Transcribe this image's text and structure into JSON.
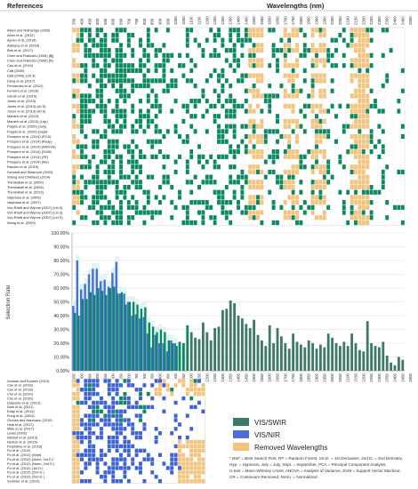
{
  "headers": {
    "references": "References",
    "wavelengths": "Wavelengths (nm)"
  },
  "refs_top": [
    "Allam and Ruthledge (2009)",
    "Alam et al. (2012)",
    "Ayoso et al. (2014)",
    "Awiaszy et al. (2018)",
    "Bah et al. (2017)",
    "Chen and Flatlocks (2006) [Bj]",
    "Chen and Flatlocks (2006) [N]",
    "Cao et al. (2019)",
    "Catt (2000)",
    "Datt (2000) (Lbl 3)",
    "Deng et al. (2017)",
    "Fernandes et al. (2012)",
    "Ferreira et al. (2016)",
    "Ghosh et al. (2019)",
    "Jones et al. (2010)",
    "Jones et al. (2010) (lid S)",
    "Jones et al. (2010) (lid S)",
    "Manlelo et al. (2013)",
    "Manlelo et al. (2013) (Lbp)",
    "Pappis et al. (2020) (July)",
    "Pappis et al. (2020) (Sept)",
    "Prospere et al. (2014) (PCA)",
    "Prospere et al. (2014) (Reap)",
    "Prospere et al. (2014) (ANOVA)",
    "Prospere et al. (2014) (SVM)",
    "Prospere et al. (2014) (SF)",
    "Prospere et al. (2014) (Ma)",
    "Racubo et al. (2019)",
    "Schmidt and Skidmore (2003)",
    "Sheng and Childress (2014)",
    "Thenkabail et al. (2000)",
    "Thenkabail et al. (2004)",
    "Thenkabail et al. (2013)",
    "Vaiphasa et al. (2005)",
    "Vaiphasa et al. (2007)",
    "Von Rheft and Wynne (2007) (Lbl 5)",
    "Von Rheft and Wynne (2007) (Lbl 3)",
    "Von Rheft and Wynne (2007) (Lbl S)",
    "Wang et al. (2009)"
  ],
  "refs_bottom": [
    "Amman and Epstein (2013)",
    "Cao et al. (2016)",
    "Cao et al. (2018)",
    "Cho et al. (2010)",
    "Cho et al. (2016)",
    "Dalponte et al. (2012)",
    "Dian et al. (2011)",
    "Eddy et al. (2014)",
    "Fung et al. (2003)",
    "Grunes and Naumann (2019)",
    "Hsia et al. (2017)",
    "Mkie et al. (2017)",
    "Lewis (2002)",
    "Nixdorf et al. (2013)",
    "Nerlich et al. (2015)",
    "Pearlstine et al. (2018)",
    "Pu et al. (2012)",
    "Pu et al. (2012) (Sept)",
    "Pu et al. (2012) (Norm, 1st D.)",
    "Pu et al. (2012) (Norm, 2nd D.)",
    "Pu et al. (2012) (1st D.)",
    "Pu et al. (2012) (2nd D.)",
    "Pu et al. (2012) (2nd D.)",
    "Sommer et al. (2015)"
  ],
  "bottom_legend": [
    {
      "label": "VIS/SWIR",
      "color": "#3d7a66"
    },
    {
      "label": "VIS/NIR",
      "color": "#4f6fd4"
    },
    {
      "label": "Removed Wavelengths",
      "color": "#f5c47c"
    }
  ],
  "footnote": [
    "* BSF = Best Search First, RF = Random Forest, 1st D. = 1st Derivative, 2nd D. = 2nd Derivativ,",
    "Hyp. = Hyperion, July = July, Sept. = September, PCA = Principal Component Analysis,",
    "U-test = Mann-Whitney U-test, ANOVA = Analysis of Variance, SVM = Support Vector Machine,",
    "CR = Continuum Removed, Norm. = Normalized."
  ],
  "chart_data": {
    "type": "bar",
    "ylabel": "Selection Rate",
    "ylim": [
      0,
      100
    ],
    "yticks": [
      "0.00%",
      "10.00%",
      "20.00%",
      "30.00%",
      "40.00%",
      "50.00%",
      "60.00%",
      "70.00%",
      "80.00%",
      "90.00%",
      "100.00%"
    ],
    "x": [
      350,
      375,
      400,
      425,
      450,
      475,
      500,
      525,
      550,
      575,
      600,
      625,
      650,
      675,
      700,
      725,
      750,
      775,
      800,
      825,
      850,
      875,
      900,
      925,
      950,
      975,
      1000,
      1025,
      1050,
      1075,
      1100,
      1125,
      1150,
      1175,
      1200,
      1225,
      1250,
      1275,
      1300,
      1325,
      1350,
      1375,
      1400,
      1425,
      1450,
      1475,
      1500,
      1525,
      1550,
      1575,
      1600,
      1625,
      1650,
      1675,
      1700,
      1725,
      1750,
      1775,
      1800,
      1825,
      1850,
      1875,
      1900,
      1925,
      1950,
      1975,
      2000,
      2025,
      2050,
      2075,
      2100,
      2125,
      2150,
      2175,
      2200,
      2225,
      2250,
      2275,
      2300,
      2325,
      2350,
      2375,
      2400,
      2425,
      2450
    ],
    "tick_labels": [
      "350",
      "400",
      "450",
      "500",
      "550",
      "600",
      "650",
      "700",
      "750",
      "800",
      "850",
      "900",
      "950",
      "1000",
      "1050",
      "1100",
      "1150",
      "1200",
      "1250",
      "1300",
      "1350",
      "1400",
      "1450",
      "1500",
      "1550",
      "1600",
      "1650",
      "1700",
      "1750",
      "1800",
      "1850",
      "1900",
      "1950",
      "2000",
      "2050",
      "2100",
      "2150",
      "2200",
      "2250",
      "2300",
      "2350",
      "2400",
      "2450",
      "2500"
    ],
    "series": [
      {
        "name": "VIS/SWIR",
        "color": "#0b8a62",
        "values": [
          42,
          40,
          52,
          52,
          57,
          55,
          60,
          58,
          55,
          60,
          61,
          56,
          57,
          48,
          50,
          50,
          48,
          45,
          46,
          35,
          32,
          28,
          30,
          28,
          22,
          20,
          18,
          21,
          20,
          33,
          28,
          24,
          23,
          35,
          28,
          22,
          31,
          32,
          44,
          45,
          51,
          49,
          40,
          38,
          34,
          31,
          37,
          26,
          22,
          18,
          33,
          20,
          31,
          25,
          20,
          16,
          27,
          21,
          19,
          17,
          22,
          20,
          16,
          19,
          17,
          27,
          24,
          20,
          18,
          21,
          18,
          27,
          20,
          15,
          14,
          36,
          20,
          18,
          17,
          21,
          11,
          6,
          4,
          10,
          8
        ]
      },
      {
        "name": "VIS/NIR",
        "color": "#4a6fd6",
        "values": [
          47,
          80,
          59,
          63,
          70,
          74,
          74,
          65,
          66,
          61,
          71,
          79,
          56,
          56,
          50,
          40,
          41,
          38,
          39,
          27,
          17,
          26,
          20,
          20,
          14,
          22,
          20,
          0,
          0,
          0,
          0,
          0,
          0,
          0,
          0,
          0,
          0,
          0,
          0,
          0,
          0,
          0,
          0,
          0,
          0,
          0,
          0,
          0,
          0,
          0,
          0,
          0,
          0,
          0,
          0,
          0,
          0,
          0,
          0,
          0,
          0,
          0,
          0,
          0,
          0,
          0,
          0,
          0,
          0,
          0,
          0,
          0,
          0,
          0,
          0,
          0,
          0,
          0,
          0,
          0,
          0,
          0,
          0,
          0,
          0
        ]
      }
    ]
  },
  "colors": {
    "swir": "#0b8a62",
    "nir": "#3b62d6",
    "removed": "#f5c47c",
    "empty": "#ffffff",
    "grid": "#e3e3e3",
    "bg": "#dff5f4"
  }
}
